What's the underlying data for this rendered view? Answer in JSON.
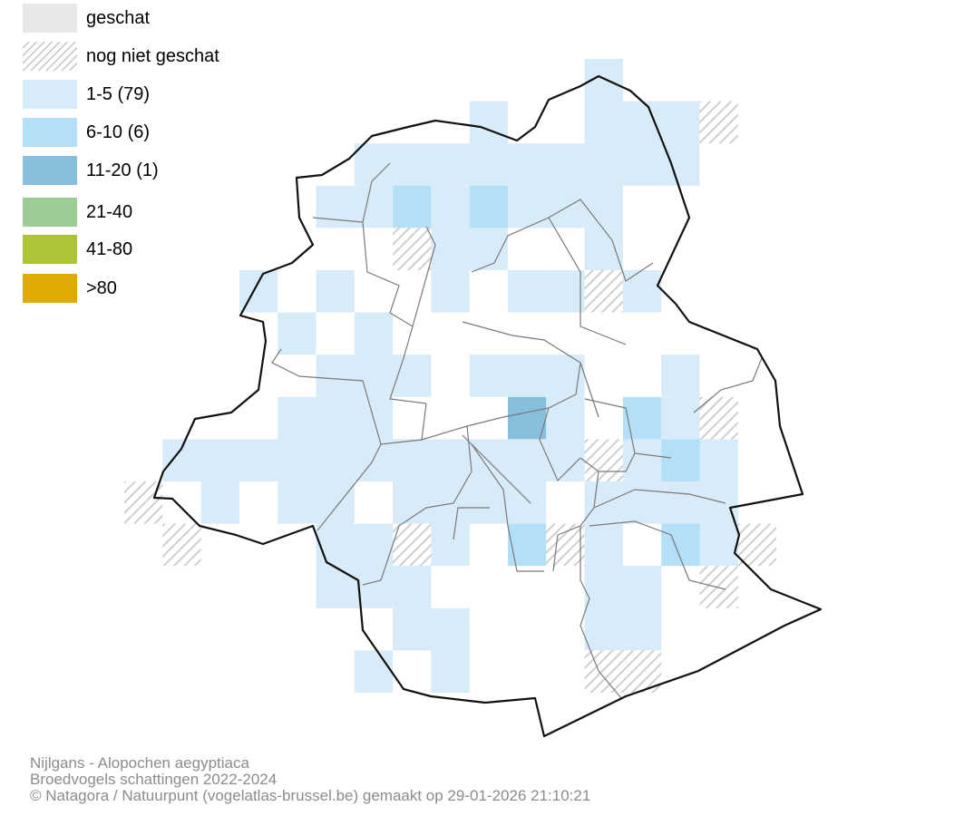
{
  "legend": {
    "items": [
      {
        "label": "geschat",
        "color": "#e8e8e8",
        "pattern": "solid"
      },
      {
        "label": "nog niet geschat",
        "color": "#cccccc",
        "pattern": "hatch"
      },
      {
        "label": "1-5 (79)",
        "color": "#d7ebf9",
        "pattern": "solid"
      },
      {
        "label": "6-10 (6)",
        "color": "#b3e0f7",
        "pattern": "solid"
      },
      {
        "label": "11-20 (1)",
        "color": "#87bfdd",
        "pattern": "solid"
      },
      {
        "label": "21-40",
        "color": "#9ccb96",
        "pattern": "solid"
      },
      {
        "label": "41-80",
        "color": "#aec33a",
        "pattern": "solid"
      },
      {
        "label": ">80",
        "color": "#e0ab00",
        "pattern": "solid"
      }
    ]
  },
  "caption": {
    "species": "Nijlgans - Alopochen aegyptiaca",
    "survey": "Broedvogels schattingen 2022-2024",
    "credit": "© Natagora / Natuurpunt (vogelatlas-brussel.be) gemaakt op 29-01-2026 21:10:21"
  },
  "map": {
    "colors": {
      "low": "#d7ebf9",
      "mid": "#b3e0f7",
      "high": "#87bfdd",
      "hatch": "#cfcfcf",
      "border": "#111111",
      "municipality": "#7a7a7a"
    }
  }
}
